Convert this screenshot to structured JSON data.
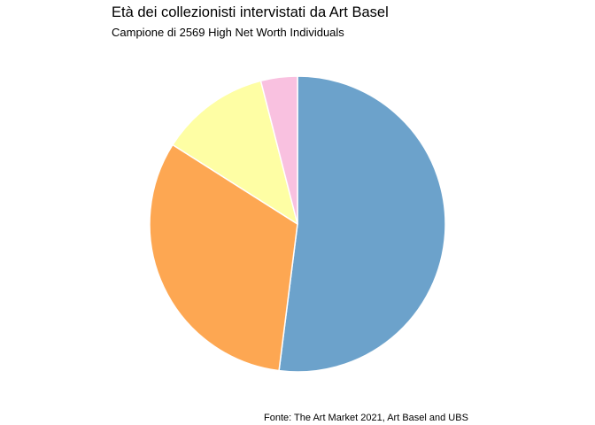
{
  "chart_data": {
    "type": "pie",
    "title": "Età dei collezionisti intervistati da Art Basel",
    "subtitle": "Campione di 2569 High Net Worth Individuals",
    "caption": "Fonte: The Art Market 2021, Art Basel and UBS",
    "legend": "none",
    "slices": [
      {
        "value": 52,
        "color": "#6ca2cb"
      },
      {
        "value": 32,
        "color": "#fda752"
      },
      {
        "value": 12,
        "color": "#fefea4"
      },
      {
        "value": 4,
        "color": "#f9c1e0"
      }
    ]
  }
}
